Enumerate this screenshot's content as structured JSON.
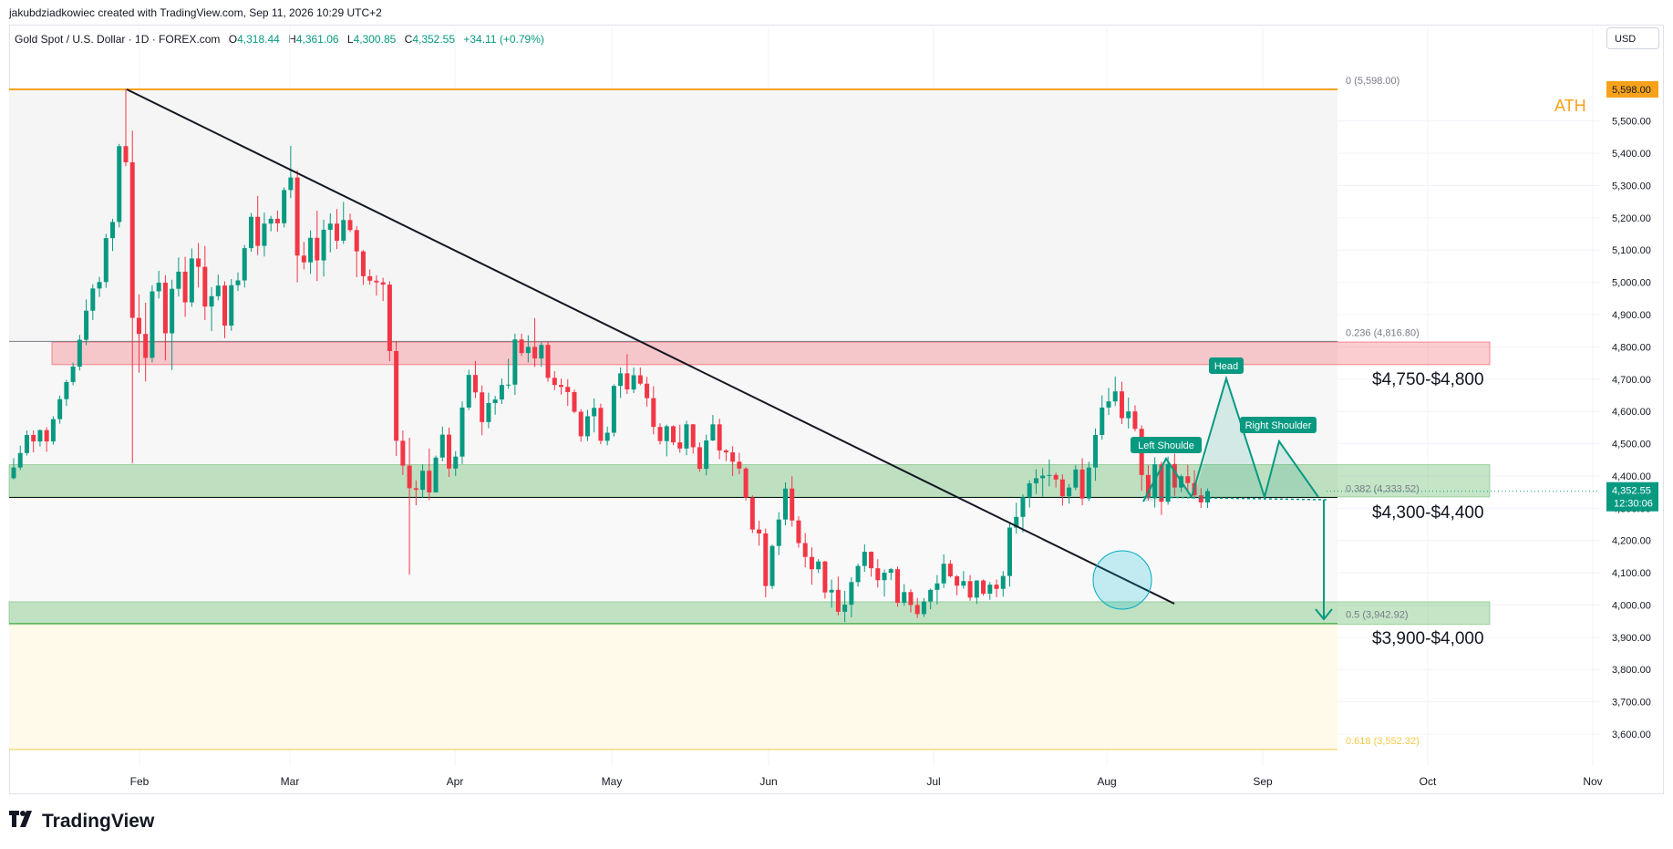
{
  "header": {
    "attribution": "jakubdziadkowiec created with TradingView.com, Sep 11, 2026 10:29 UTC+2",
    "symbol": "Gold Spot / U.S. Dollar · 1D · FOREX.com",
    "o_label": "O",
    "o_value": "4,318.44",
    "h_label": "H",
    "h_value": "4,361.06",
    "l_label": "L",
    "l_value": "4,300.85",
    "c_label": "C",
    "c_value": "4,352.55",
    "change": "+34.11 (+0.79%)",
    "currency": "USD"
  },
  "footer": {
    "brand": "TradingView"
  },
  "colors": {
    "up": "#089981",
    "down": "#f23645",
    "ath": "#f7a21b",
    "resistance": "#f7b6bc",
    "support": "#a5d6a7"
  },
  "chart_data": {
    "type": "candlestick",
    "ylim": [
      3475,
      5650
    ],
    "x_ticks": [
      "Feb",
      "Mar",
      "Apr",
      "May",
      "Jun",
      "Jul",
      "Aug",
      "Sep",
      "Oct",
      "Nov"
    ],
    "y_ticks": [
      "3,600.00",
      "3,700.00",
      "3,800.00",
      "3,900.00",
      "4,000.00",
      "4,100.00",
      "4,200.00",
      "4,300.00",
      "4,400.00",
      "4,500.00",
      "4,600.00",
      "4,700.00",
      "4,800.00",
      "4,900.00",
      "5,000.00",
      "5,100.00",
      "5,200.00",
      "5,300.00",
      "5,400.00",
      "5,500.00"
    ],
    "last_price": "4,352.55",
    "countdown": "12:30:06",
    "fib_levels": [
      {
        "label": "0 (5,598.00)",
        "value": 5598
      },
      {
        "label": "0.236 (4,816.80)",
        "value": 4816.8
      },
      {
        "label": "0.382 (4,333.52)",
        "value": 4333.52
      },
      {
        "label": "0.5 (3,942.92)",
        "value": 3942.92
      },
      {
        "label": "0.618 (3,552.32)",
        "value": 3552.32
      }
    ],
    "ath_label": "5,598.00",
    "ath_text": "ATH",
    "zones": [
      {
        "label": "$4,750-$4,800",
        "low": 4745,
        "high": 4815
      },
      {
        "label": "$4,300-$4,400",
        "low": 4335,
        "high": 4435
      },
      {
        "label": "$3,900-$4,000",
        "low": 3940,
        "high": 4010
      }
    ],
    "pattern_labels": [
      "Left Shoulde",
      "Head",
      "Right Shoulder"
    ],
    "candles": [
      [
        4393,
        4455,
        4389,
        4426
      ],
      [
        4426,
        4494,
        4418,
        4471
      ],
      [
        4471,
        4541,
        4463,
        4527
      ],
      [
        4527,
        4541,
        4473,
        4507
      ],
      [
        4507,
        4544,
        4491,
        4542
      ],
      [
        4542,
        4551,
        4475,
        4507
      ],
      [
        4507,
        4585,
        4497,
        4576
      ],
      [
        4576,
        4649,
        4562,
        4638
      ],
      [
        4638,
        4698,
        4617,
        4691
      ],
      [
        4691,
        4751,
        4681,
        4739
      ],
      [
        4739,
        4837,
        4727,
        4822
      ],
      [
        4822,
        4947,
        4805,
        4912
      ],
      [
        4912,
        4994,
        4883,
        4981
      ],
      [
        4981,
        5017,
        4955,
        5001
      ],
      [
        5001,
        5150,
        4983,
        5137
      ],
      [
        5137,
        5197,
        5097,
        5187
      ],
      [
        5187,
        5429,
        5170,
        5422
      ],
      [
        5422,
        5598,
        5360,
        5372
      ],
      [
        5372,
        5470,
        4440,
        4890
      ],
      [
        4890,
        4963,
        4720,
        4840
      ],
      [
        4840,
        4937,
        4693,
        4766
      ],
      [
        4766,
        4991,
        4752,
        4972
      ],
      [
        4972,
        5036,
        4950,
        4999
      ],
      [
        4999,
        5022,
        4758,
        4842
      ],
      [
        4842,
        5008,
        4728,
        4980
      ],
      [
        4980,
        5077,
        4956,
        5033
      ],
      [
        5033,
        5079,
        4893,
        4938
      ],
      [
        4938,
        5105,
        4924,
        5074
      ],
      [
        5074,
        5122,
        4984,
        5048
      ],
      [
        5048,
        5113,
        4883,
        4925
      ],
      [
        4925,
        4985,
        4849,
        4957
      ],
      [
        4957,
        5024,
        4944,
        4990
      ],
      [
        4990,
        5003,
        4827,
        4866
      ],
      [
        4866,
        5010,
        4850,
        4991
      ],
      [
        4991,
        5031,
        4973,
        5006
      ],
      [
        5006,
        5116,
        4984,
        5106
      ],
      [
        5106,
        5215,
        5095,
        5203
      ],
      [
        5203,
        5268,
        5085,
        5113
      ],
      [
        5113,
        5216,
        5080,
        5182
      ],
      [
        5182,
        5206,
        5158,
        5197
      ],
      [
        5197,
        5222,
        5157,
        5183
      ],
      [
        5183,
        5294,
        5170,
        5286
      ],
      [
        5286,
        5423,
        5261,
        5325
      ],
      [
        5325,
        5347,
        5000,
        5083
      ],
      [
        5083,
        5125,
        5040,
        5062
      ],
      [
        5062,
        5161,
        5026,
        5138
      ],
      [
        5138,
        5222,
        5004,
        5068
      ],
      [
        5068,
        5194,
        5018,
        5163
      ],
      [
        5163,
        5214,
        5093,
        5182
      ],
      [
        5182,
        5227,
        5103,
        5129
      ],
      [
        5129,
        5249,
        5119,
        5193
      ],
      [
        5193,
        5213,
        5156,
        5162
      ],
      [
        5162,
        5174,
        5016,
        5096
      ],
      [
        5096,
        5100,
        4992,
        5019
      ],
      [
        5019,
        5040,
        4992,
        5005
      ],
      [
        5005,
        5022,
        4959,
        5000
      ],
      [
        5000,
        5014,
        4942,
        4993
      ],
      [
        4993,
        5003,
        4756,
        4787
      ],
      [
        4787,
        4818,
        4462,
        4509
      ],
      [
        4509,
        4541,
        4403,
        4432
      ],
      [
        4432,
        4518,
        4094,
        4362
      ],
      [
        4362,
        4386,
        4309,
        4357
      ],
      [
        4357,
        4436,
        4333,
        4416
      ],
      [
        4416,
        4485,
        4325,
        4349
      ],
      [
        4349,
        4463,
        4351,
        4457
      ],
      [
        4457,
        4553,
        4445,
        4528
      ],
      [
        4528,
        4550,
        4397,
        4423
      ],
      [
        4423,
        4477,
        4400,
        4460
      ],
      [
        4460,
        4631,
        4437,
        4612
      ],
      [
        4612,
        4729,
        4604,
        4713
      ],
      [
        4713,
        4756,
        4641,
        4659
      ],
      [
        4659,
        4680,
        4526,
        4567
      ],
      [
        4567,
        4658,
        4548,
        4626
      ],
      [
        4626,
        4648,
        4590,
        4637
      ],
      [
        4637,
        4702,
        4623,
        4682
      ],
      [
        4682,
        4763,
        4670,
        4683
      ],
      [
        4683,
        4841,
        4651,
        4823
      ],
      [
        4823,
        4841,
        4772,
        4781
      ],
      [
        4781,
        4836,
        4752,
        4800
      ],
      [
        4800,
        4889,
        4738,
        4764
      ],
      [
        4764,
        4815,
        4738,
        4806
      ],
      [
        4806,
        4817,
        4692,
        4704
      ],
      [
        4704,
        4725,
        4666,
        4682
      ],
      [
        4682,
        4702,
        4652,
        4676
      ],
      [
        4676,
        4700,
        4617,
        4660
      ],
      [
        4660,
        4668,
        4594,
        4599
      ],
      [
        4599,
        4607,
        4506,
        4523
      ],
      [
        4523,
        4605,
        4508,
        4585
      ],
      [
        4585,
        4640,
        4535,
        4611
      ],
      [
        4611,
        4624,
        4499,
        4509
      ],
      [
        4509,
        4553,
        4495,
        4534
      ],
      [
        4534,
        4684,
        4522,
        4679
      ],
      [
        4679,
        4736,
        4642,
        4718
      ],
      [
        4718,
        4777,
        4654,
        4668
      ],
      [
        4668,
        4736,
        4657,
        4712
      ],
      [
        4712,
        4736,
        4681,
        4686
      ],
      [
        4686,
        4707,
        4615,
        4641
      ],
      [
        4641,
        4678,
        4529,
        4552
      ],
      [
        4552,
        4563,
        4497,
        4508
      ],
      [
        4508,
        4559,
        4461,
        4554
      ],
      [
        4554,
        4557,
        4495,
        4504
      ],
      [
        4504,
        4559,
        4472,
        4485
      ],
      [
        4485,
        4571,
        4464,
        4560
      ],
      [
        4560,
        4561,
        4469,
        4489
      ],
      [
        4489,
        4504,
        4413,
        4422
      ],
      [
        4422,
        4528,
        4402,
        4510
      ],
      [
        4510,
        4589,
        4508,
        4560
      ],
      [
        4560,
        4577,
        4452,
        4479
      ],
      [
        4479,
        4483,
        4446,
        4473
      ],
      [
        4473,
        4492,
        4400,
        4444
      ],
      [
        4444,
        4472,
        4405,
        4423
      ],
      [
        4423,
        4427,
        4324,
        4333
      ],
      [
        4333,
        4340,
        4223,
        4234
      ],
      [
        4234,
        4261,
        4184,
        4222
      ],
      [
        4222,
        4237,
        4024,
        4059
      ],
      [
        4059,
        4187,
        4050,
        4183
      ],
      [
        4183,
        4288,
        4155,
        4265
      ],
      [
        4265,
        4380,
        4247,
        4361
      ],
      [
        4361,
        4399,
        4243,
        4262
      ],
      [
        4262,
        4275,
        4178,
        4192
      ],
      [
        4192,
        4223,
        4117,
        4149
      ],
      [
        4149,
        4179,
        4063,
        4111
      ],
      [
        4111,
        4142,
        4099,
        4135
      ],
      [
        4135,
        4137,
        4020,
        4039
      ],
      [
        4039,
        4079,
        3992,
        4047
      ],
      [
        4047,
        4088,
        3968,
        3979
      ],
      [
        3979,
        4044,
        3947,
        4001
      ],
      [
        4001,
        4086,
        3962,
        4071
      ],
      [
        4071,
        4128,
        4057,
        4121
      ],
      [
        4121,
        4188,
        4103,
        4165
      ],
      [
        4165,
        4166,
        4088,
        4114
      ],
      [
        4114,
        4142,
        4054,
        4077
      ],
      [
        4077,
        4110,
        4026,
        4100
      ],
      [
        4100,
        4115,
        4077,
        4111
      ],
      [
        4111,
        4119,
        3995,
        4007
      ],
      [
        4007,
        4065,
        3998,
        4040
      ],
      [
        4040,
        4049,
        3977,
        4000
      ],
      [
        4000,
        4022,
        3960,
        3972
      ],
      [
        3972,
        4021,
        3963,
        4011
      ],
      [
        4011,
        4051,
        3987,
        4047
      ],
      [
        4047,
        4093,
        4002,
        4067
      ],
      [
        4067,
        4157,
        4053,
        4128
      ],
      [
        4128,
        4139,
        4085,
        4089
      ],
      [
        4089,
        4093,
        4030,
        4060
      ],
      [
        4060,
        4105,
        4051,
        4074
      ],
      [
        4074,
        4093,
        4013,
        4023
      ],
      [
        4023,
        4077,
        4003,
        4076
      ],
      [
        4076,
        4079,
        4029,
        4035
      ],
      [
        4035,
        4071,
        4016,
        4063
      ],
      [
        4063,
        4079,
        4024,
        4050
      ],
      [
        4050,
        4105,
        4026,
        4090
      ],
      [
        4090,
        4253,
        4057,
        4240
      ],
      [
        4240,
        4317,
        4221,
        4273
      ],
      [
        4273,
        4343,
        4225,
        4334
      ],
      [
        4334,
        4387,
        4302,
        4377
      ],
      [
        4377,
        4421,
        4344,
        4393
      ],
      [
        4393,
        4424,
        4336,
        4401
      ],
      [
        4401,
        4451,
        4368,
        4403
      ],
      [
        4403,
        4410,
        4364,
        4389
      ],
      [
        4389,
        4405,
        4308,
        4337
      ],
      [
        4337,
        4375,
        4314,
        4364
      ],
      [
        4364,
        4433,
        4356,
        4420
      ],
      [
        4420,
        4455,
        4309,
        4330
      ],
      [
        4330,
        4444,
        4323,
        4426
      ],
      [
        4426,
        4547,
        4385,
        4527
      ],
      [
        4527,
        4650,
        4512,
        4612
      ],
      [
        4612,
        4673,
        4589,
        4631
      ],
      [
        4631,
        4708,
        4617,
        4662
      ],
      [
        4662,
        4692,
        4561,
        4579
      ],
      [
        4579,
        4643,
        4547,
        4600
      ],
      [
        4600,
        4619,
        4538,
        4546
      ],
      [
        4546,
        4557,
        4354,
        4403
      ],
      [
        4403,
        4433,
        4324,
        4331
      ],
      [
        4331,
        4458,
        4302,
        4436
      ],
      [
        4436,
        4444,
        4279,
        4320
      ],
      [
        4320,
        4460,
        4311,
        4437
      ],
      [
        4437,
        4469,
        4338,
        4364
      ],
      [
        4364,
        4404,
        4350,
        4399
      ],
      [
        4399,
        4435,
        4355,
        4378
      ],
      [
        4378,
        4418,
        4334,
        4340
      ],
      [
        4340,
        4362,
        4301,
        4318
      ],
      [
        4318,
        4361,
        4301,
        4353
      ]
    ]
  }
}
